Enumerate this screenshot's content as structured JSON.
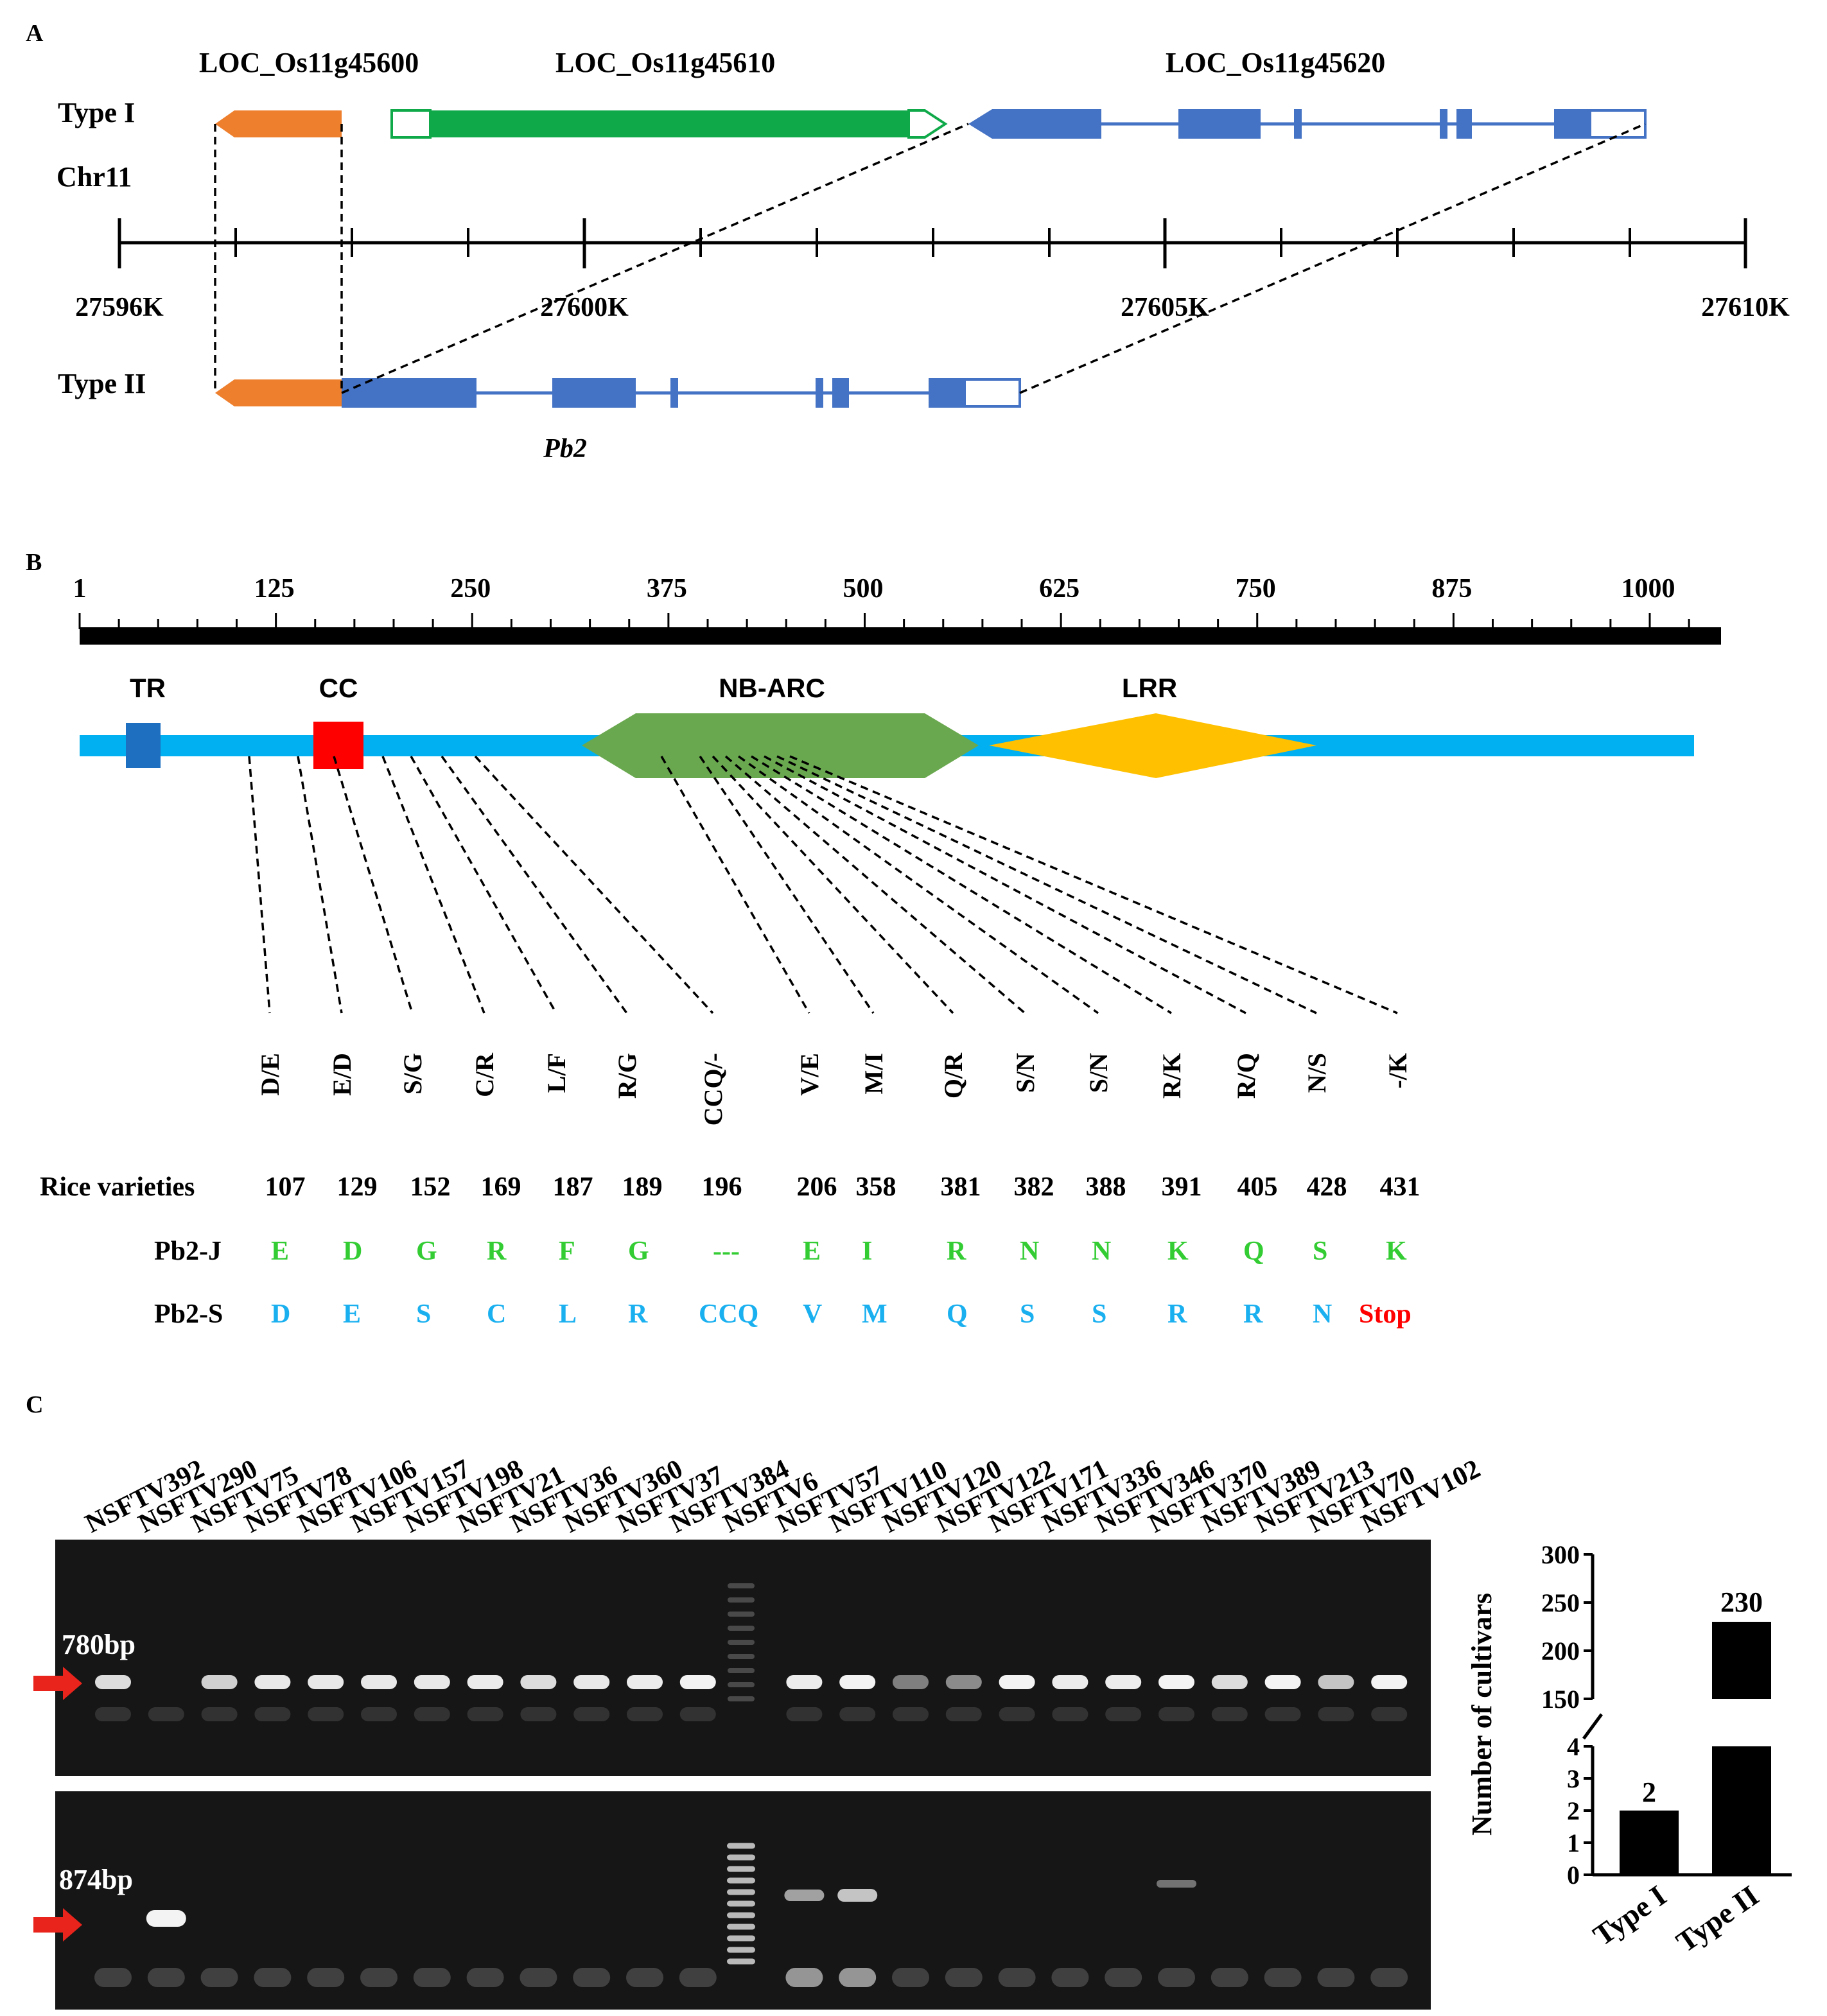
{
  "panel_a": {
    "label": "A",
    "gene_labels": [
      "LOC_Os11g45600",
      "LOC_Os11g45610",
      "LOC_Os11g45620"
    ],
    "type1": "Type I",
    "type2": "Type II",
    "chromosome": "Chr11",
    "scale_labels": [
      "27596K",
      "27600K",
      "27605K",
      "27610K"
    ],
    "gene_name": "Pb2",
    "colors": {
      "orange": "#ee7f2d",
      "green": "#0fa94a",
      "blue": "#4472c4"
    }
  },
  "panel_b": {
    "label": "B",
    "ruler_labels": [
      "1",
      "125",
      "250",
      "375",
      "500",
      "625",
      "750",
      "875",
      "1000"
    ],
    "domains": [
      "TR",
      "CC",
      "NB-ARC",
      "LRR"
    ],
    "colors": {
      "backbone": "#00b0f0",
      "tr": "#1f6fc0",
      "cc": "#ff0000",
      "nbarc": "#6aa84f",
      "lrr": "#ffc000"
    },
    "substitutions": [
      "D/E",
      "E/D",
      "S/G",
      "C/R",
      "L/F",
      "R/G",
      "CCQ/-",
      "V/E",
      "M/I",
      "Q/R",
      "S/N",
      "S/N",
      "R/K",
      "R/Q",
      "N/S",
      "-/K"
    ],
    "row_header": "Rice varieties",
    "positions": [
      "107",
      "129",
      "152",
      "169",
      "187",
      "189",
      "196",
      "206",
      "358",
      "381",
      "382",
      "388",
      "391",
      "405",
      "428",
      "431"
    ],
    "pb2j_label": "Pb2-J",
    "pb2j": [
      "E",
      "D",
      "G",
      "R",
      "F",
      "G",
      "---",
      "E",
      "I",
      "R",
      "N",
      "N",
      "K",
      "Q",
      "S",
      "K"
    ],
    "pb2s_label": "Pb2-S",
    "pb2s": [
      "D",
      "E",
      "S",
      "C",
      "L",
      "R",
      "CCQ",
      "V",
      "M",
      "Q",
      "S",
      "S",
      "R",
      "R",
      "N",
      "Stop"
    ],
    "j_color": "#33cc33",
    "s_color": "#1ab0f0",
    "stop_color": "#ff0000"
  },
  "panel_c": {
    "label": "C",
    "lanes": [
      "NSFTV392",
      "NSFTV290",
      "NSFTV75",
      "NSFTV78",
      "NSFTV106",
      "NSFTV157",
      "NSFTV198",
      "NSFTV21",
      "NSFTV36",
      "NSFTV360",
      "NSFTV37",
      "NSFTV384",
      "NSFTV6",
      "NSFTV57",
      "NSFTV110",
      "NSFTV120",
      "NSFTV122",
      "NSFTV171",
      "NSFTV336",
      "NSFTV346",
      "NSFTV370",
      "NSFTV389",
      "NSFTV213",
      "NSFTV70",
      "NSFTV102"
    ],
    "gel1_marker": "780bp",
    "gel2_marker": "874bp"
  },
  "chart_data": {
    "type": "bar",
    "title": "",
    "categories": [
      "Type I",
      "Type II"
    ],
    "values": [
      2,
      230
    ],
    "data_labels": [
      "2",
      "230"
    ],
    "ylabel": "Number of cultivars",
    "xlabel": "",
    "axis_break": [
      4,
      150
    ],
    "lower_ticks": [
      "0",
      "1",
      "2",
      "3",
      "4"
    ],
    "upper_ticks": [
      "150",
      "200",
      "250",
      "300"
    ],
    "ylim_lower": [
      0,
      4
    ],
    "ylim_upper": [
      150,
      300
    ]
  }
}
